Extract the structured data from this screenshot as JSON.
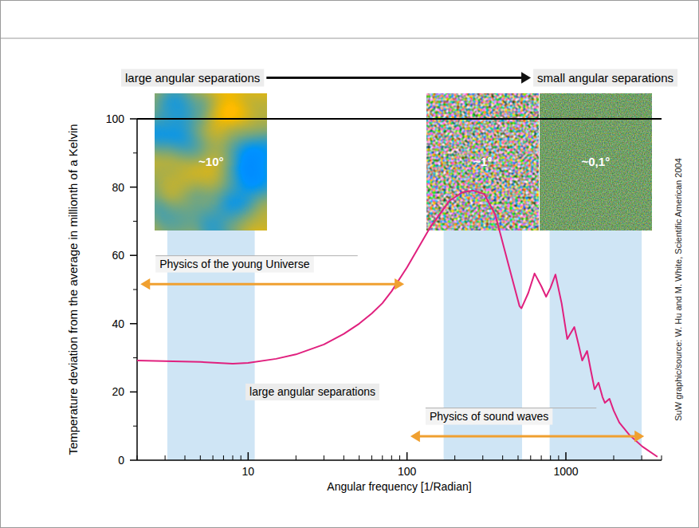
{
  "chart_data": {
    "type": "line",
    "xlabel": "Angular frequency [1/Radian]",
    "ylabel": "Temperature deviation from the average in millionth of a Kelvin",
    "log": "x",
    "grid": false,
    "xlim": [
      2,
      4000
    ],
    "ylim": [
      0,
      100
    ],
    "xticks": [
      10,
      100,
      1000
    ],
    "yticks": [
      0,
      20,
      40,
      60,
      80,
      100
    ],
    "x": [
      2,
      5,
      8,
      10,
      15,
      20,
      30,
      40,
      50,
      60,
      70,
      80,
      100,
      139,
      185,
      224,
      260,
      306,
      359,
      434,
      510,
      525,
      580,
      635,
      700,
      751,
      800,
      860,
      940,
      1020,
      1130,
      1200,
      1267,
      1360,
      1440,
      1516,
      1605,
      1700,
      1760,
      1880,
      2000,
      2170,
      2500,
      3030,
      3770
    ],
    "series": [
      {
        "color": "#e0207e",
        "values": [
          29.2,
          28.8,
          28.3,
          28.5,
          29.7,
          31,
          33.9,
          37,
          40,
          43,
          46,
          49.5,
          56.5,
          68,
          76,
          78.5,
          79,
          78,
          72,
          57.5,
          45.2,
          44.5,
          49,
          54.7,
          51,
          47.9,
          50.5,
          54.4,
          46,
          35.5,
          39,
          34,
          29.2,
          32,
          26,
          20.8,
          22.7,
          18.5,
          16.8,
          18,
          14.5,
          11,
          7.5,
          4,
          1
        ]
      }
    ],
    "bands": [
      {
        "x": [
          3.1,
          11
        ],
        "label": "~10°"
      },
      {
        "x": [
          170,
          530
        ],
        "label": "~1°"
      },
      {
        "x": [
          790,
          3000
        ],
        "label": "~0,1°"
      }
    ],
    "direction": {
      "from": "large angular separations",
      "to": "small angular separations"
    },
    "ranges": [
      {
        "text": "Physics of the young Universe",
        "x": [
          2.1,
          96
        ],
        "y": 51.6
      },
      {
        "text": "Physics of sound waves",
        "x": [
          105,
          3110
        ],
        "y": 7
      }
    ],
    "notes": [
      {
        "text": "large angular separations",
        "x": 10.2,
        "y": 20
      }
    ],
    "source": "SuW graphic/source: W. Hu and M. White, Scientific American 2004"
  }
}
